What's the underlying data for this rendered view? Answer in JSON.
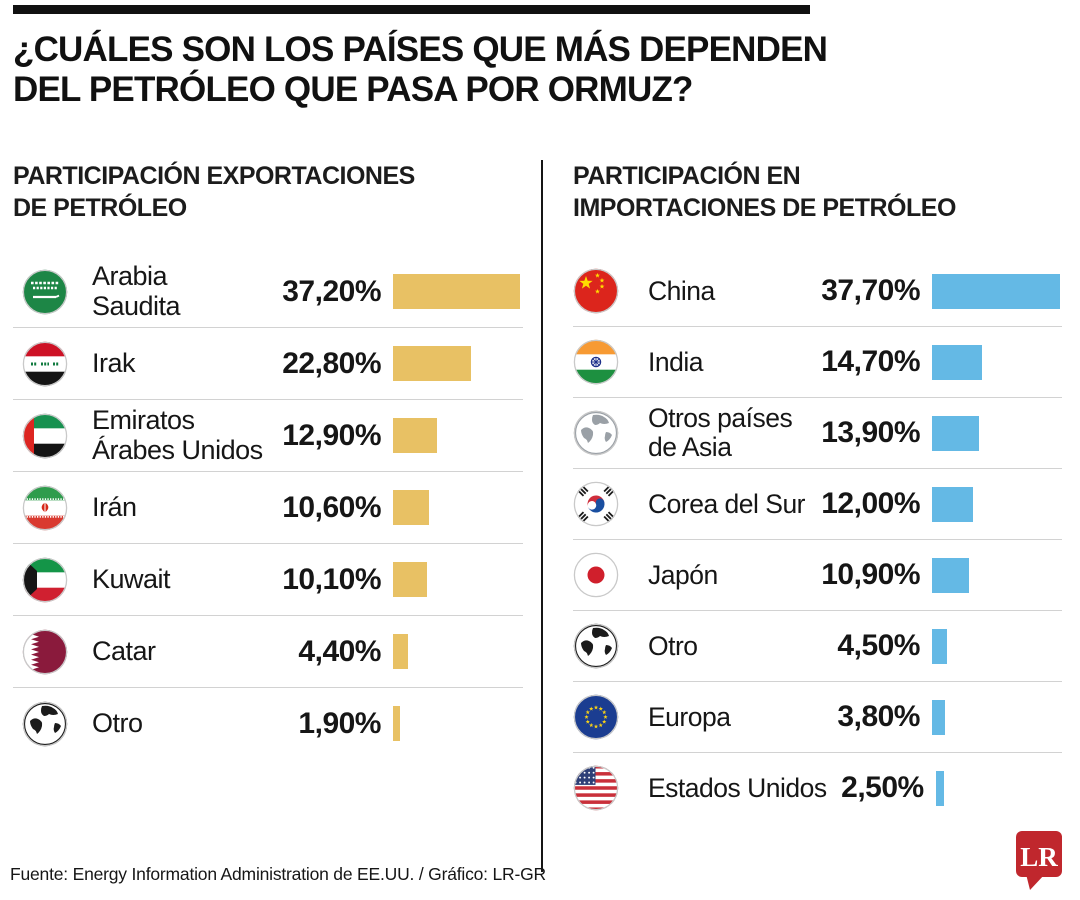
{
  "title": {
    "line1": "¿CUÁLES SON LOS PAÍSES QUE MÁS DEPENDEN",
    "line2": "DEL PETRÓLEO QUE PASA POR ORMUZ?"
  },
  "colors": {
    "export_bar": "#e8c164",
    "import_bar": "#64b9e5",
    "row_separator": "#d2d2d2",
    "divider": "#151515",
    "logo_red": "#c0272d",
    "text": "#161616"
  },
  "left": {
    "heading_line1": "PARTICIPACIÓN EXPORTACIONES",
    "heading_line2": "DE PETRÓLEO",
    "rows": [
      {
        "lines": [
          "Arabia",
          "Saudita"
        ],
        "pct_label": "37,20%",
        "value": 37.2,
        "flag": "saudi-arabia"
      },
      {
        "lines": [
          "Irak"
        ],
        "pct_label": "22,80%",
        "value": 22.8,
        "flag": "iraq"
      },
      {
        "lines": [
          "Emiratos",
          "Árabes Unidos"
        ],
        "pct_label": "12,90%",
        "value": 12.9,
        "flag": "uae"
      },
      {
        "lines": [
          "Irán"
        ],
        "pct_label": "10,60%",
        "value": 10.6,
        "flag": "iran"
      },
      {
        "lines": [
          "Kuwait"
        ],
        "pct_label": "10,10%",
        "value": 10.1,
        "flag": "kuwait"
      },
      {
        "lines": [
          "Catar"
        ],
        "pct_label": "4,40%",
        "value": 4.4,
        "flag": "qatar"
      },
      {
        "lines": [
          "Otro"
        ],
        "pct_label": "1,90%",
        "value": 1.9,
        "flag": "globe"
      }
    ]
  },
  "right": {
    "heading_line1": "PARTICIPACIÓN EN",
    "heading_line2": "IMPORTACIONES DE PETRÓLEO",
    "rows": [
      {
        "lines": [
          "China"
        ],
        "pct_label": "37,70%",
        "value": 37.7,
        "flag": "china"
      },
      {
        "lines": [
          "India"
        ],
        "pct_label": "14,70%",
        "value": 14.7,
        "flag": "india"
      },
      {
        "lines": [
          "Otros países",
          "de Asia"
        ],
        "pct_label": "13,90%",
        "value": 13.9,
        "flag": "globe-gray"
      },
      {
        "lines": [
          "Corea del Sur"
        ],
        "pct_label": "12,00%",
        "value": 12.0,
        "flag": "south-korea"
      },
      {
        "lines": [
          "Japón"
        ],
        "pct_label": "10,90%",
        "value": 10.9,
        "flag": "japan"
      },
      {
        "lines": [
          "Otro"
        ],
        "pct_label": "4,50%",
        "value": 4.5,
        "flag": "globe"
      },
      {
        "lines": [
          "Europa"
        ],
        "pct_label": "3,80%",
        "value": 3.8,
        "flag": "eu"
      },
      {
        "lines": [
          "Estados Unidos"
        ],
        "pct_label": "2,50%",
        "value": 2.5,
        "flag": "usa"
      }
    ]
  },
  "footer": {
    "source": "Fuente: Energy Information Administration de EE.UU. / Gráfico: LR-GR",
    "logo_text": "LR"
  },
  "chart_data": [
    {
      "type": "bar",
      "orientation": "horizontal",
      "title": "PARTICIPACIÓN EXPORTACIONES DE PETRÓLEO",
      "categories": [
        "Arabia Saudita",
        "Irak",
        "Emiratos Árabes Unidos",
        "Irán",
        "Kuwait",
        "Catar",
        "Otro"
      ],
      "values": [
        37.2,
        22.8,
        12.9,
        10.6,
        10.1,
        4.4,
        1.9
      ],
      "unit": "%",
      "bar_color": "#e8c164",
      "xlabel": "",
      "ylabel": "",
      "xlim": [
        0,
        40
      ],
      "grid": false,
      "legend": false
    },
    {
      "type": "bar",
      "orientation": "horizontal",
      "title": "PARTICIPACIÓN EN IMPORTACIONES DE PETRÓLEO",
      "categories": [
        "China",
        "India",
        "Otros países de Asia",
        "Corea del Sur",
        "Japón",
        "Otro",
        "Europa",
        "Estados Unidos"
      ],
      "values": [
        37.7,
        14.7,
        13.9,
        12.0,
        10.9,
        4.5,
        3.8,
        2.5
      ],
      "unit": "%",
      "bar_color": "#64b9e5",
      "xlabel": "",
      "ylabel": "",
      "xlim": [
        0,
        40
      ],
      "grid": false,
      "legend": false
    }
  ]
}
